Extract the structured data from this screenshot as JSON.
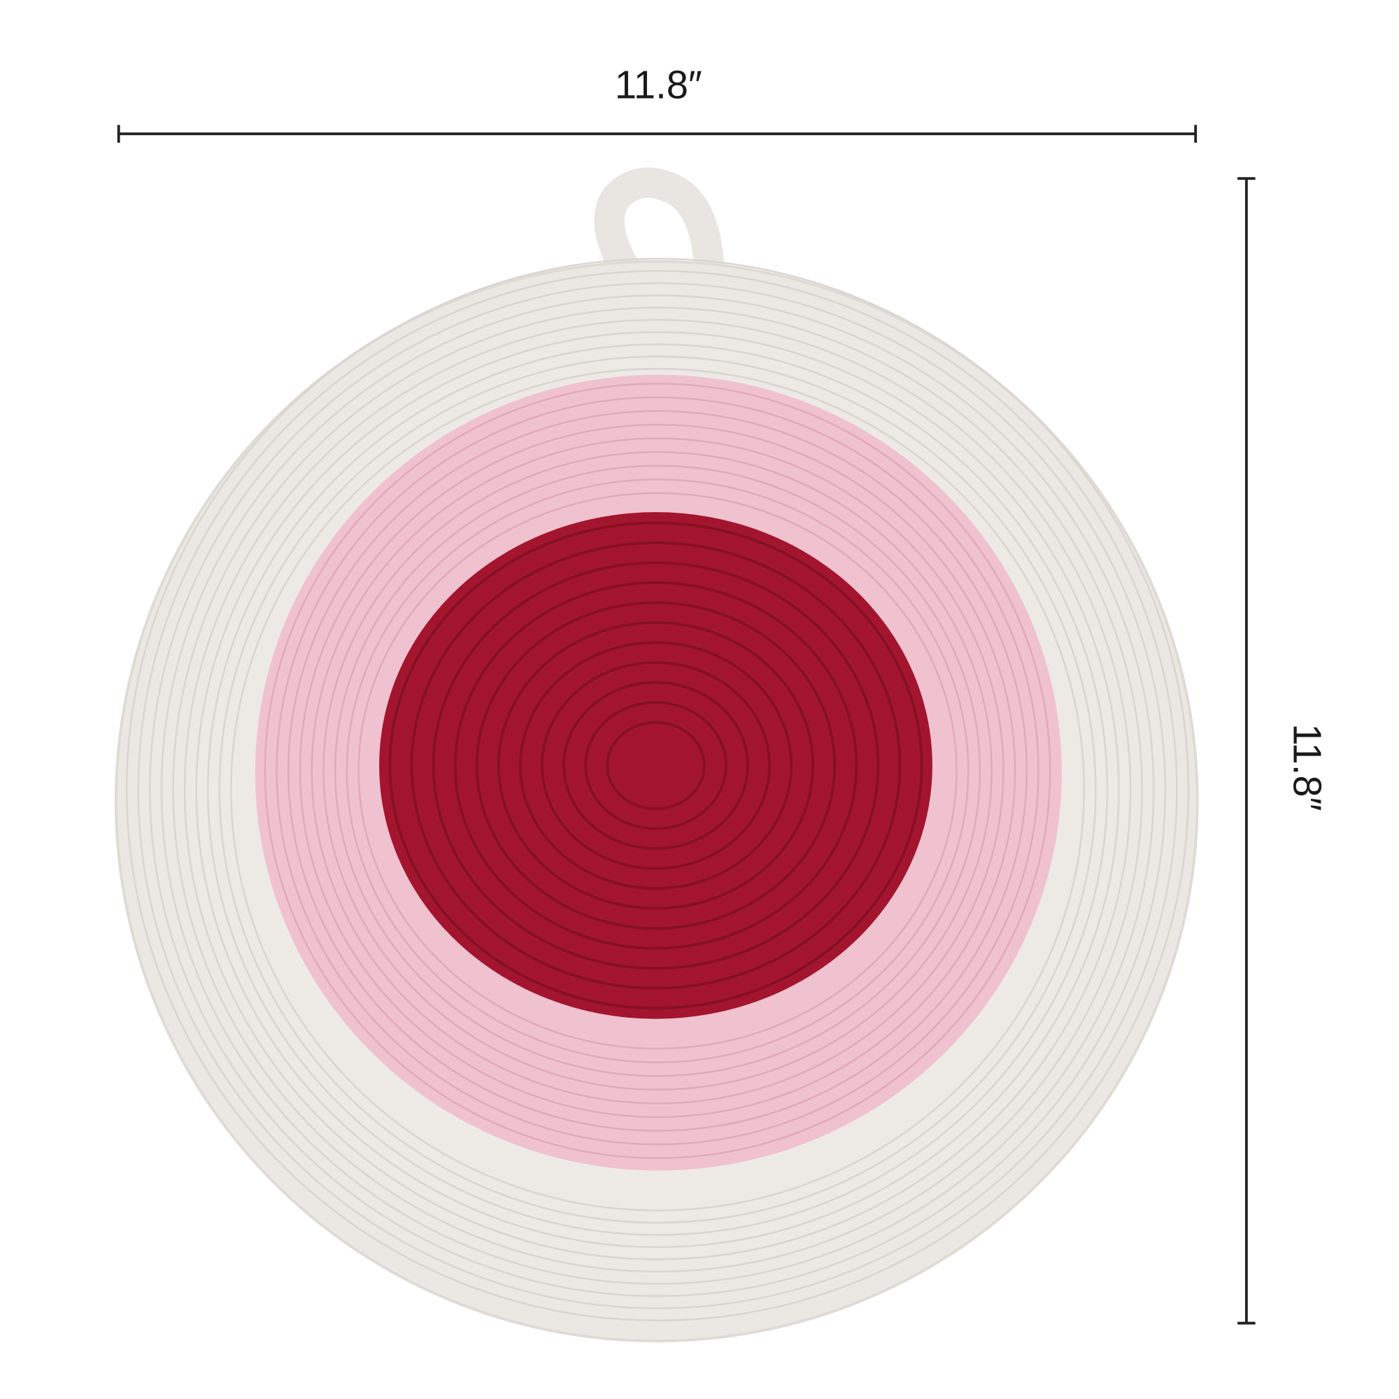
{
  "dimensions": {
    "width": "11.8″",
    "height": "11.8″"
  }
}
